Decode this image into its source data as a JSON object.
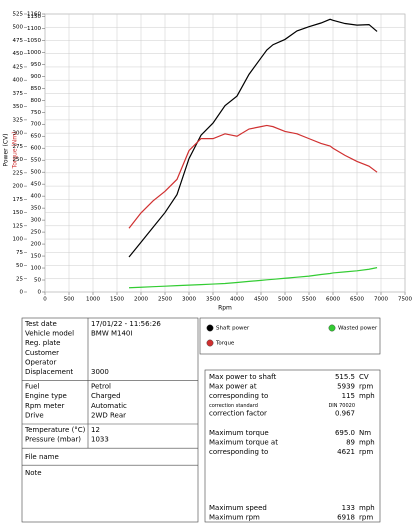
{
  "chart_data": {
    "type": "line",
    "ylabel": "Power (CV)",
    "y2label": "Torque (Nm)",
    "xlabel": "Rpm",
    "x": [
      1750,
      2000,
      2250,
      2500,
      2750,
      3000,
      3250,
      3500,
      3750,
      4000,
      4250,
      4500,
      4621,
      4750,
      5000,
      5250,
      5500,
      5750,
      5939,
      6000,
      6250,
      6500,
      6750,
      6918
    ],
    "series": [
      {
        "name": "Shaft power",
        "color": "#000000",
        "values": [
          66,
          94,
          122,
          150,
          184,
          252,
          296,
          319,
          352,
          370,
          411,
          442,
          457,
          467,
          477,
          493,
          501,
          508,
          515,
          513,
          507,
          504,
          505,
          492
        ]
      },
      {
        "name": "Wasted power",
        "color": "#33cc33",
        "values": [
          8,
          9,
          10,
          11,
          12,
          13,
          14,
          15,
          16,
          18,
          20,
          22,
          23,
          24,
          26,
          28,
          30,
          33,
          35,
          36,
          38,
          40,
          43,
          46
        ]
      },
      {
        "name": "Torque",
        "color": "#d03030",
        "axis": "y2",
        "values": [
          266,
          330,
          380,
          420,
          470,
          590,
          640,
          640,
          660,
          650,
          680,
          690,
          695,
          690,
          670,
          660,
          640,
          620,
          609,
          600,
          570,
          545,
          525,
          500
        ]
      }
    ],
    "xlim": [
      0,
      7500
    ],
    "xticks": [
      0,
      500,
      1000,
      1500,
      2000,
      2500,
      3000,
      3500,
      4000,
      4500,
      5000,
      5500,
      6000,
      6500,
      7000,
      7500
    ],
    "ylim": [
      0,
      525
    ],
    "yticks": [
      0,
      25,
      50,
      75,
      100,
      125,
      150,
      175,
      200,
      225,
      250,
      275,
      300,
      325,
      350,
      375,
      400,
      425,
      450,
      475,
      500,
      525
    ],
    "y2lim": [
      0,
      1160
    ],
    "y2ticks": [
      0,
      50,
      100,
      150,
      200,
      250,
      300,
      350,
      400,
      450,
      500,
      550,
      600,
      650,
      700,
      750,
      800,
      850,
      900,
      950,
      1000,
      1050,
      1100,
      1150,
      1160
    ],
    "grid": true
  },
  "info": {
    "sections": [
      [
        {
          "label": "Test date",
          "value": "17/01/22 - 11:56:26"
        },
        {
          "label": "Vehicle model",
          "value": "BMW M140I"
        },
        {
          "label": "Reg. plate"
        },
        {
          "label": "Customer"
        },
        {
          "label": "Operator"
        },
        {
          "label": "Displacement",
          "value": "3000"
        }
      ],
      [
        {
          "label": "Fuel",
          "value": "Petrol"
        },
        {
          "label": "Engine type",
          "value": "Charged"
        },
        {
          "label": "Rpm meter",
          "value": "Automatic"
        },
        {
          "label": "Drive",
          "value": "2WD Rear"
        }
      ],
      [
        {
          "label": "Temperature (°C)",
          "value": "12"
        },
        {
          "label": "Pressure (mbar)",
          "value": "1033"
        }
      ]
    ],
    "file_name": "File name",
    "note": "Note"
  },
  "results": [
    [
      {
        "label": "Max power to shaft",
        "value": "515.5",
        "unit": "CV"
      },
      {
        "label": "Max power at",
        "value": "5939",
        "unit": "rpm"
      },
      {
        "label": "corresponding to",
        "value": "115",
        "unit": "mph"
      },
      {
        "label": "correction standard",
        "value": "DIN 70020",
        "small": true
      },
      {
        "label": "correction factor",
        "value": "0.967"
      }
    ],
    [
      {
        "label": "Maximum torque",
        "value": "695.0",
        "unit": "Nm"
      },
      {
        "label": " Maximum torque at",
        "value": "89",
        "unit": "mph"
      },
      {
        "label": "corresponding to",
        "value": "4621",
        "unit": "rpm"
      }
    ],
    [
      {
        "label": "Maximum speed",
        "value": "133",
        "unit": "mph"
      },
      {
        "label": "Maximum rpm",
        "value": "6918",
        "unit": "rpm"
      }
    ]
  ]
}
